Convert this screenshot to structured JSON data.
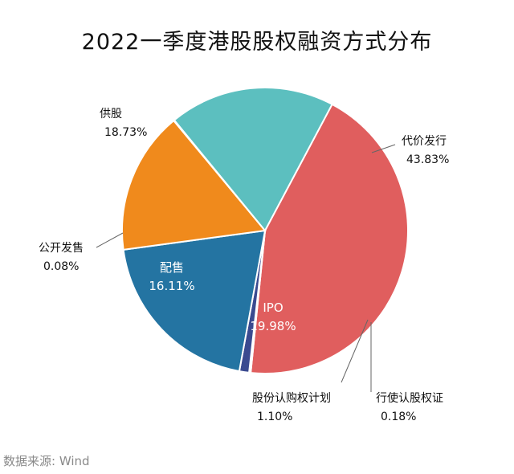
{
  "chart_data": {
    "type": "pie",
    "title": "2022一季度港股股权融资方式分布",
    "watermark": "Wind",
    "slices": [
      {
        "name": "代价发行",
        "value": 43.83,
        "label": "43.83%",
        "color": "#e05e5e"
      },
      {
        "name": "行使认股权证",
        "value": 0.18,
        "label": "0.18%",
        "color": "#9090c8"
      },
      {
        "name": "股份认购权计划",
        "value": 1.1,
        "label": "1.10%",
        "color": "#3a4a90"
      },
      {
        "name": "IPO",
        "value": 19.98,
        "label": "19.98%",
        "color": "#2474a2"
      },
      {
        "name": "配售",
        "value": 16.11,
        "label": "16.11%",
        "color": "#f08a1c"
      },
      {
        "name": "公开发售",
        "value": 0.08,
        "label": "0.08%",
        "color": "#e0e0e0"
      },
      {
        "name": "供股",
        "value": 18.73,
        "label": "18.73%",
        "color": "#5cbfbf"
      }
    ]
  },
  "source": "数据来源: Wind"
}
